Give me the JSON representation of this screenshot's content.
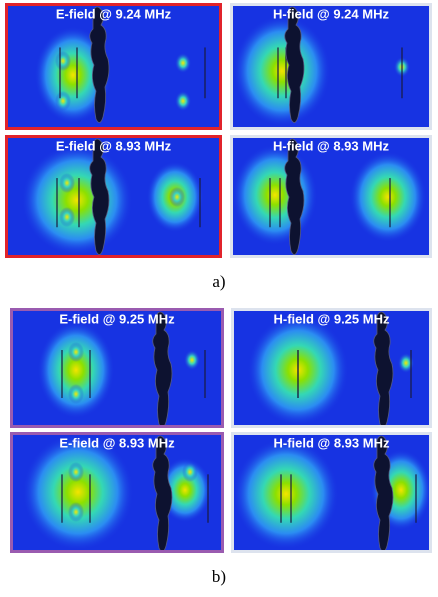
{
  "figure_a": {
    "label": "a)",
    "panels": [
      {
        "title": "E-field @ 9.24 MHz"
      },
      {
        "title": "H-field @ 9.24 MHz"
      },
      {
        "title": "E-field @ 8.93 MHz"
      },
      {
        "title": "H-field @ 8.93 MHz"
      }
    ]
  },
  "figure_b": {
    "label": "b)",
    "panels": [
      {
        "title": "E-field @ 9.25 MHz"
      },
      {
        "title": "H-field @ 9.25 MHz"
      },
      {
        "title": "E-field @ 8.93 MHz"
      },
      {
        "title": "H-field @ 8.93 MHz"
      }
    ]
  }
}
